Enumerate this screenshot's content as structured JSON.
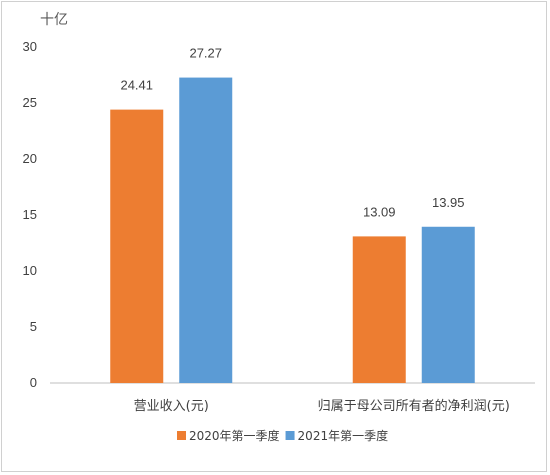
{
  "chart_data": {
    "type": "bar",
    "unit_label": "十亿",
    "categories": [
      "营业收入(元)",
      "归属于母公司所有者的净利润(元)"
    ],
    "series": [
      {
        "name": "2020年第一季度",
        "color": "#ED7D31",
        "values": [
          24.41,
          13.09
        ]
      },
      {
        "name": "2021年第一季度",
        "color": "#5B9BD5",
        "values": [
          27.27,
          13.95
        ]
      }
    ],
    "ylim": [
      0,
      30
    ],
    "yticks": [
      0,
      5,
      10,
      15,
      20,
      25,
      30
    ],
    "grid": false,
    "legend": "bottom"
  }
}
